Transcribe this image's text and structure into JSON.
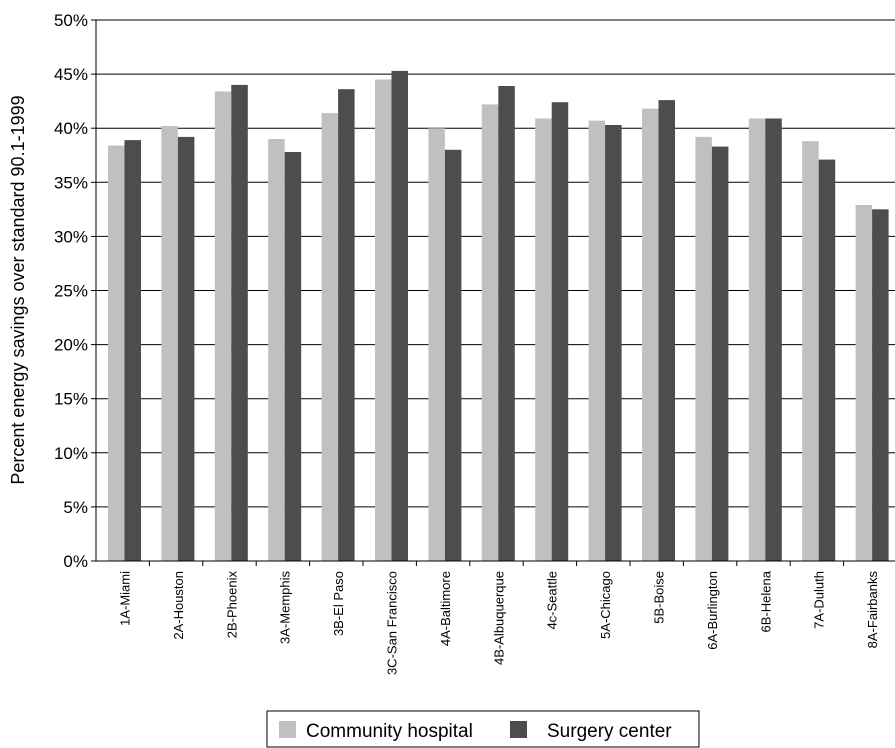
{
  "chart_data": {
    "type": "bar",
    "ylabel": "Percent energy savings over standard 90.1-1999",
    "ylim": [
      0,
      50
    ],
    "y_ticks": [
      "0%",
      "5%",
      "10%",
      "15%",
      "20%",
      "25%",
      "30%",
      "35%",
      "40%",
      "45%",
      "50%"
    ],
    "grid": true,
    "legend_position": "bottom",
    "categories": [
      "1A-Miami",
      "2A-Houston",
      "2B-Phoenix",
      "3A-Memphis",
      "3B-El Paso",
      "3C-San Francisco",
      "4A-Baltimore",
      "4B-Albuquerque",
      "4c-Seattle",
      "5A-Chicago",
      "5B-Boise",
      "6A-Burlington",
      "6B-Helena",
      "7A-Duluth",
      "8A-Fairbanks"
    ],
    "series": [
      {
        "name": "Community hospital",
        "color": "#c0c0c0",
        "values": [
          38.4,
          40.2,
          43.4,
          39.0,
          41.4,
          44.5,
          40.0,
          42.2,
          40.9,
          40.7,
          41.8,
          39.2,
          40.9,
          38.8,
          32.9
        ]
      },
      {
        "name": "Surgery center",
        "color": "#4d4d4d",
        "values": [
          38.9,
          39.2,
          44.0,
          37.8,
          43.6,
          45.3,
          38.0,
          43.9,
          42.4,
          40.3,
          42.6,
          38.3,
          40.9,
          37.1,
          32.5
        ]
      }
    ]
  }
}
